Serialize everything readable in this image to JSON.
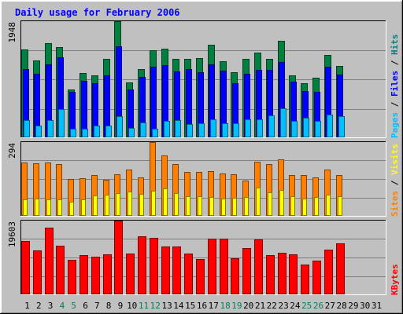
{
  "chart_data": {
    "type": "bar",
    "title": "Daily usage for February 2006",
    "categories": [
      "1",
      "2",
      "3",
      "4",
      "5",
      "6",
      "7",
      "8",
      "9",
      "10",
      "11",
      "12",
      "13",
      "14",
      "15",
      "16",
      "17",
      "18",
      "19",
      "20",
      "21",
      "22",
      "23",
      "24",
      "25",
      "26",
      "27",
      "28",
      "29",
      "30",
      "31"
    ],
    "weekend_days": [
      "4",
      "5",
      "11",
      "12",
      "18",
      "19",
      "25",
      "26"
    ],
    "panels": [
      {
        "id": "top",
        "max_label": "1948",
        "ylim": [
          0,
          1948
        ],
        "legend": [
          {
            "text": "Pages",
            "color": "#00c0ff"
          },
          {
            "text": " / ",
            "color": "#000000"
          },
          {
            "text": "Files",
            "color": "#0000ff"
          },
          {
            "text": " / ",
            "color": "#000000"
          },
          {
            "text": "Hits",
            "color": "#008080"
          }
        ],
        "series": [
          {
            "name": "Hits",
            "fill": "#008040",
            "stroke": "#004020",
            "values": [
              1475,
              1295,
              1583,
              1514,
              808,
              1079,
              1046,
              1313,
              1948,
              917,
              1151,
              1457,
              1493,
              1314,
              1314,
              1331,
              1551,
              1281,
              1090,
              1313,
              1421,
              1321,
              1618,
              1036,
              912,
              994,
              1381,
              1198,
              0,
              0,
              0
            ]
          },
          {
            "name": "Files",
            "fill": "#0000ff",
            "stroke": "#000080",
            "values": [
              1142,
              1070,
              1226,
              1346,
              761,
              954,
              911,
              1042,
              1522,
              797,
              1016,
              1188,
              1211,
              1110,
              1148,
              1089,
              1228,
              1119,
              903,
              1070,
              1138,
              1135,
              1259,
              930,
              780,
              760,
              1184,
              1053,
              0,
              0,
              0
            ]
          },
          {
            "name": "Pages",
            "fill": "#00c0ff",
            "stroke": "#006080",
            "values": [
              283,
              195,
              295,
              476,
              150,
              150,
              197,
              192,
              351,
              159,
              249,
              150,
              282,
              295,
              222,
              237,
              304,
              238,
              240,
              302,
              302,
              367,
              492,
              270,
              333,
              276,
              380,
              349,
              0,
              0,
              0
            ]
          }
        ]
      },
      {
        "id": "middle",
        "max_label": "294",
        "ylim": [
          0,
          294
        ],
        "legend": [
          {
            "text": "Sites",
            "color": "#ff8000"
          },
          {
            "text": " / ",
            "color": "#000000"
          },
          {
            "text": "Visits",
            "color": "#ffff00"
          }
        ],
        "series": [
          {
            "name": "Sites",
            "fill": "#ff8000",
            "stroke": "#804000",
            "values": [
              212,
              210,
              212,
              205,
              147,
              150,
              162,
              145,
              165,
              185,
              153,
              294,
              240,
              206,
              175,
              176,
              178,
              170,
              165,
              141,
              216,
              206,
              224,
              164,
              163,
              154,
              183,
              162,
              0,
              0,
              0
            ]
          },
          {
            "name": "Visits",
            "fill": "#ffff00",
            "stroke": "#808000",
            "values": [
              67,
              70,
              65,
              67,
              55,
              65,
              80,
              83,
              90,
              97,
              89,
              100,
              111,
              90,
              77,
              77,
              75,
              70,
              73,
              75,
              113,
              95,
              104,
              79,
              70,
              76,
              86,
              78,
              0,
              0,
              0
            ]
          }
        ]
      },
      {
        "id": "bottom",
        "max_label": "19603",
        "ylim": [
          0,
          19603
        ],
        "legend": [
          {
            "text": "KBytes",
            "color": "#ff0000"
          }
        ],
        "series": [
          {
            "name": "KBytes",
            "fill": "#ff0000",
            "stroke": "#800000",
            "values": [
              14187,
              11718,
              17750,
              12903,
              9206,
              10333,
              9958,
              10698,
              19603,
              10912,
              15534,
              14935,
              12619,
              12779,
              10885,
              9400,
              14740,
              14825,
              9550,
              12221,
              14693,
              10440,
              11096,
              10693,
              7859,
              9047,
              11955,
              13586,
              0,
              0,
              0
            ]
          }
        ]
      }
    ]
  }
}
